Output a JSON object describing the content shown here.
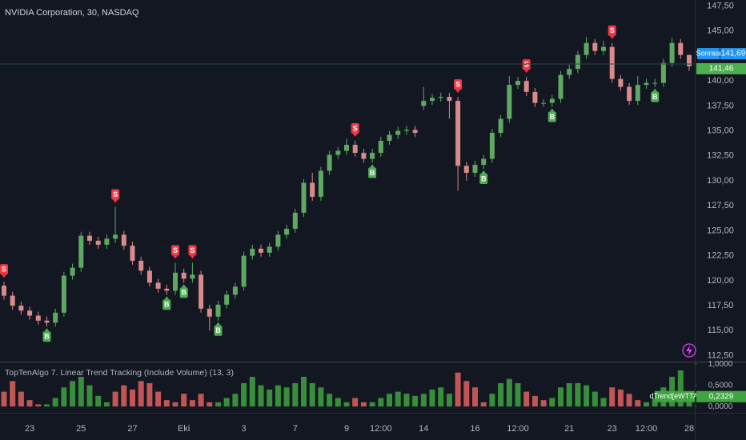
{
  "chart_data": [
    {
      "type": "candlestick",
      "title": "NVIDIA Corporation, 30, NASDAQ",
      "open": [
        119.5,
        118.5,
        117.5,
        117.0,
        116.5,
        116.0,
        115.8,
        116.8,
        120.5,
        121.3,
        124.5,
        124.0,
        123.6,
        124.2,
        124.6,
        123.5,
        122.0,
        121.0,
        119.8,
        119.2,
        119.0,
        120.8,
        120.2,
        120.6,
        117.2,
        116.4,
        117.6,
        118.6,
        119.4,
        122.5,
        123.2,
        122.8,
        123.4,
        124.6,
        125.2,
        126.8,
        129.8,
        128.4,
        131.0,
        132.6,
        133.0,
        133.6,
        132.8,
        132.2,
        132.8,
        134.0,
        134.6,
        135.0,
        135.1,
        137.5,
        138.0,
        138.3,
        138.4,
        138.0,
        131.5,
        130.8,
        131.6,
        132.2,
        134.8,
        136.2,
        139.6,
        140.0,
        138.9,
        137.8,
        137.8,
        138.2,
        140.6,
        141.2,
        142.6,
        143.8,
        143.0,
        143.4,
        140.2,
        139.4,
        138.0,
        139.6,
        139.8,
        139.8,
        141.8,
        143.8,
        142.6
      ],
      "high": [
        119.9,
        118.9,
        117.9,
        117.4,
        116.9,
        116.4,
        117.2,
        120.9,
        121.7,
        124.9,
        124.9,
        124.4,
        124.6,
        127.4,
        125.0,
        123.9,
        122.4,
        121.4,
        120.2,
        119.6,
        121.8,
        121.2,
        121.8,
        121.0,
        117.6,
        118.0,
        119.0,
        119.8,
        122.9,
        123.6,
        123.6,
        123.8,
        125.0,
        125.6,
        127.2,
        130.2,
        130.8,
        131.4,
        133.0,
        133.4,
        134.2,
        134.0,
        133.2,
        133.2,
        134.4,
        135.0,
        135.4,
        135.5,
        135.5,
        139.4,
        138.7,
        138.8,
        138.8,
        138.4,
        131.9,
        132.0,
        132.6,
        135.2,
        136.6,
        140.5,
        140.4,
        140.4,
        139.3,
        138.2,
        138.6,
        141.0,
        141.6,
        143.0,
        144.4,
        144.2,
        144.0,
        143.8,
        140.6,
        139.8,
        140.5,
        140.2,
        140.2,
        142.2,
        144.3,
        144.2,
        142.6
      ],
      "low": [
        118.1,
        117.1,
        116.6,
        116.1,
        115.6,
        115.4,
        115.4,
        116.4,
        120.1,
        120.9,
        123.6,
        123.2,
        123.2,
        123.8,
        123.1,
        121.6,
        120.6,
        119.4,
        118.8,
        118.6,
        118.6,
        119.8,
        119.8,
        116.8,
        115.0,
        116.0,
        117.2,
        118.2,
        119.0,
        122.1,
        122.4,
        122.4,
        123.0,
        124.2,
        124.8,
        126.4,
        128.0,
        128.0,
        130.6,
        132.2,
        132.6,
        132.4,
        131.8,
        131.8,
        132.4,
        133.6,
        134.2,
        134.6,
        134.4,
        137.1,
        137.6,
        137.9,
        136.2,
        129.0,
        130.0,
        130.4,
        131.2,
        131.8,
        134.4,
        135.8,
        139.2,
        138.5,
        137.4,
        137.4,
        137.4,
        137.8,
        140.2,
        140.8,
        142.2,
        142.6,
        142.6,
        139.8,
        139.0,
        137.6,
        137.6,
        139.2,
        139.4,
        139.4,
        141.4,
        142.2,
        141.0
      ],
      "close": [
        118.5,
        117.5,
        117.0,
        116.5,
        116.0,
        115.8,
        116.8,
        120.5,
        121.3,
        124.5,
        124.0,
        123.6,
        124.2,
        124.6,
        123.5,
        122.0,
        121.0,
        119.8,
        119.2,
        119.0,
        120.8,
        120.2,
        120.6,
        117.2,
        116.4,
        117.6,
        118.6,
        119.4,
        122.5,
        123.2,
        122.8,
        123.4,
        124.6,
        125.2,
        126.8,
        129.8,
        128.4,
        131.0,
        132.6,
        133.0,
        133.6,
        132.8,
        132.2,
        132.8,
        134.0,
        134.6,
        135.0,
        135.1,
        134.8,
        138.0,
        138.3,
        138.4,
        138.0,
        131.5,
        130.8,
        131.6,
        132.2,
        134.8,
        136.2,
        139.6,
        140.0,
        138.9,
        137.8,
        137.8,
        138.2,
        140.6,
        141.2,
        142.6,
        143.8,
        143.0,
        143.4,
        140.2,
        139.4,
        138.0,
        139.6,
        139.8,
        139.8,
        141.8,
        143.8,
        142.6,
        141.46
      ],
      "up_color": "#5fa862",
      "down_color": "#d98a8a",
      "ylim": [
        111.9,
        148.1
      ],
      "yticks": [
        {
          "value": 112.5,
          "label": "112,50"
        },
        {
          "value": 115,
          "label": "115,00"
        },
        {
          "value": 117.5,
          "label": "117,50"
        },
        {
          "value": 120,
          "label": "120,00"
        },
        {
          "value": 122.5,
          "label": "122,50"
        },
        {
          "value": 125,
          "label": "125,00"
        },
        {
          "value": 127.5,
          "label": "127,50"
        },
        {
          "value": 130,
          "label": "130,00"
        },
        {
          "value": 132.5,
          "label": "132,50"
        },
        {
          "value": 135,
          "label": "135,00"
        },
        {
          "value": 137.5,
          "label": "137,50"
        },
        {
          "value": 140,
          "label": "140,00"
        },
        {
          "value": 142.5,
          "label": "142,50"
        },
        {
          "value": 145,
          "label": "145,00"
        },
        {
          "value": 147.5,
          "label": "147,50"
        }
      ],
      "xticks": [
        {
          "value": 3,
          "label": "23"
        },
        {
          "value": 9,
          "label": "25"
        },
        {
          "value": 15,
          "label": "27"
        },
        {
          "value": 21,
          "label": "Eki"
        },
        {
          "value": 28,
          "label": "3"
        },
        {
          "value": 34,
          "label": "7"
        },
        {
          "value": 40,
          "label": "9"
        },
        {
          "value": 44,
          "label": "12:00"
        },
        {
          "value": 49,
          "label": "14"
        },
        {
          "value": 55,
          "label": "16"
        },
        {
          "value": 60,
          "label": "12:00"
        },
        {
          "value": 66,
          "label": "21"
        },
        {
          "value": 71,
          "label": "23"
        },
        {
          "value": 75,
          "label": "12:00"
        },
        {
          "value": 80,
          "label": "28"
        }
      ],
      "signals": [
        {
          "label": "S",
          "color": "#f23645",
          "position": "above",
          "indices": [
            0,
            13,
            20,
            22,
            41,
            53,
            61,
            71
          ]
        },
        {
          "label": "B",
          "color": "#4caf50",
          "position": "below",
          "indices": [
            5,
            19,
            21,
            25,
            43,
            56,
            64,
            76
          ]
        }
      ],
      "price_lines": [
        {
          "name": "Sonrası",
          "value": 141.69,
          "label": "141,69",
          "color": "#2196f3"
        },
        {
          "value": 141.46,
          "label": "141,46",
          "color": "#4caf50"
        }
      ],
      "grid": false
    },
    {
      "type": "bar",
      "title": "TopTenAlgo 7. Linear Trend Tracking (Include Volume) (13, 3)",
      "series": [
        {
          "color": "#3fa53f",
          "values": [
            null,
            null,
            null,
            null,
            null,
            0.05,
            0.2,
            0.45,
            0.6,
            0.7,
            0.5,
            0.25,
            0.1,
            null,
            null,
            null,
            null,
            null,
            null,
            null,
            null,
            null,
            null,
            null,
            null,
            0.1,
            0.2,
            0.3,
            0.55,
            0.7,
            0.5,
            0.4,
            0.5,
            0.45,
            0.55,
            0.7,
            0.55,
            0.45,
            0.3,
            0.2,
            0.1,
            null,
            null,
            0.1,
            0.2,
            0.3,
            0.35,
            0.3,
            0.25,
            0.3,
            0.4,
            0.45,
            0.3,
            null,
            null,
            null,
            null,
            0.3,
            0.55,
            0.65,
            0.55,
            null,
            null,
            null,
            0.2,
            0.45,
            0.55,
            0.55,
            0.5,
            0.35,
            0.2,
            null,
            null,
            null,
            null,
            0.1,
            0.2,
            0.45,
            0.7,
            0.85,
            0.2329
          ]
        },
        {
          "color": "#e0615e",
          "values": [
            0.35,
            0.6,
            0.35,
            0.15,
            0.05,
            null,
            null,
            null,
            null,
            null,
            null,
            null,
            null,
            0.35,
            0.5,
            0.4,
            0.6,
            0.55,
            0.35,
            0.15,
            0.1,
            0.3,
            0.15,
            0.3,
            0.1,
            null,
            null,
            null,
            null,
            null,
            null,
            null,
            null,
            null,
            null,
            null,
            null,
            null,
            null,
            null,
            null,
            0.2,
            0.1,
            null,
            null,
            null,
            null,
            null,
            null,
            null,
            null,
            null,
            null,
            0.8,
            0.6,
            0.45,
            0.1,
            null,
            null,
            null,
            null,
            0.35,
            0.25,
            0.15,
            null,
            null,
            null,
            null,
            null,
            null,
            null,
            0.45,
            0.4,
            0.3,
            0.15,
            null,
            null,
            null,
            null,
            null,
            null
          ]
        }
      ],
      "readout": {
        "name": "dTrend[eWTTA]",
        "label": "0,2329",
        "color": "#3fa53f"
      },
      "ylim": [
        -0.13,
        1.04
      ],
      "yticks": [
        {
          "value": 0,
          "label": "0,0000"
        },
        {
          "value": 0.5,
          "label": "0,5000"
        },
        {
          "value": 1,
          "label": "1,0000"
        }
      ]
    }
  ]
}
